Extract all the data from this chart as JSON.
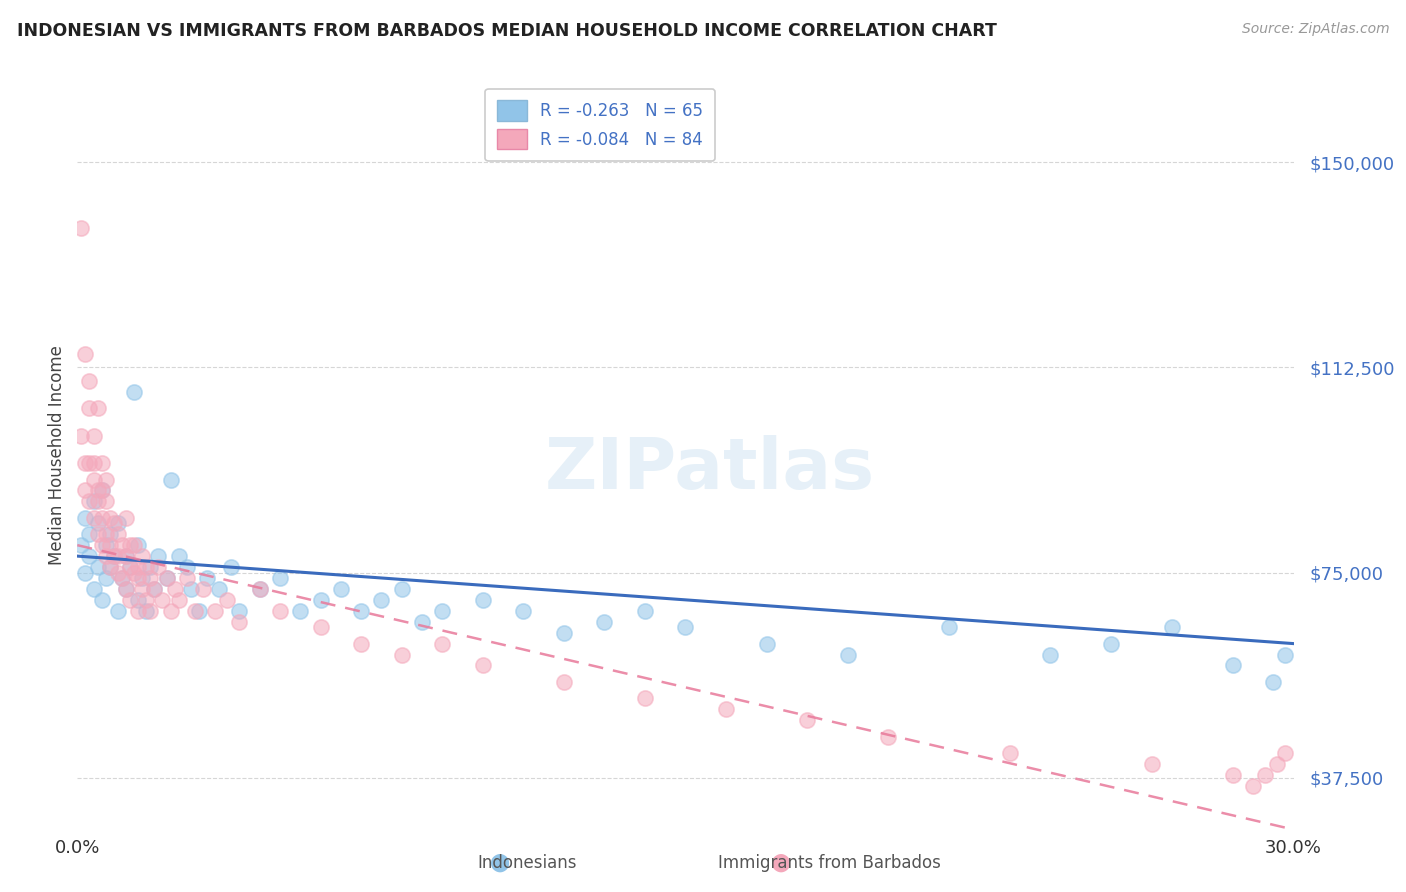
{
  "title": "INDONESIAN VS IMMIGRANTS FROM BARBADOS MEDIAN HOUSEHOLD INCOME CORRELATION CHART",
  "source": "Source: ZipAtlas.com",
  "ylabel": "Median Household Income",
  "legend_indonesians": "Indonesians",
  "legend_barbados": "Immigrants from Barbados",
  "R_indonesians": -0.263,
  "N_indonesians": 65,
  "R_barbados": -0.084,
  "N_barbados": 84,
  "color_indonesians": "#91c4e8",
  "color_barbados": "#f4a8bb",
  "line_color_indonesians": "#3a6bbd",
  "line_color_barbados": "#e8799a",
  "background_color": "#ffffff",
  "yticks": [
    37500,
    75000,
    112500,
    150000
  ],
  "ytick_labels": [
    "$37,500",
    "$75,000",
    "$112,500",
    "$150,000"
  ],
  "xlim": [
    0.0,
    0.3
  ],
  "ylim": [
    28000,
    165000
  ],
  "indonesians_x": [
    0.001,
    0.002,
    0.002,
    0.003,
    0.003,
    0.004,
    0.004,
    0.005,
    0.005,
    0.006,
    0.006,
    0.007,
    0.007,
    0.008,
    0.008,
    0.009,
    0.01,
    0.01,
    0.011,
    0.012,
    0.012,
    0.013,
    0.014,
    0.015,
    0.015,
    0.016,
    0.017,
    0.018,
    0.019,
    0.02,
    0.022,
    0.023,
    0.025,
    0.027,
    0.028,
    0.03,
    0.032,
    0.035,
    0.038,
    0.04,
    0.045,
    0.05,
    0.055,
    0.06,
    0.065,
    0.07,
    0.075,
    0.08,
    0.085,
    0.09,
    0.1,
    0.11,
    0.12,
    0.13,
    0.14,
    0.15,
    0.17,
    0.19,
    0.215,
    0.24,
    0.255,
    0.27,
    0.285,
    0.295,
    0.298
  ],
  "indonesians_y": [
    80000,
    75000,
    85000,
    78000,
    82000,
    72000,
    88000,
    76000,
    84000,
    70000,
    90000,
    74000,
    80000,
    76000,
    82000,
    78000,
    68000,
    84000,
    74000,
    78000,
    72000,
    76000,
    108000,
    80000,
    70000,
    74000,
    68000,
    76000,
    72000,
    78000,
    74000,
    92000,
    78000,
    76000,
    72000,
    68000,
    74000,
    72000,
    76000,
    68000,
    72000,
    74000,
    68000,
    70000,
    72000,
    68000,
    70000,
    72000,
    66000,
    68000,
    70000,
    68000,
    64000,
    66000,
    68000,
    65000,
    62000,
    60000,
    65000,
    60000,
    62000,
    65000,
    58000,
    55000,
    60000
  ],
  "barbados_x": [
    0.001,
    0.001,
    0.002,
    0.002,
    0.002,
    0.003,
    0.003,
    0.003,
    0.003,
    0.004,
    0.004,
    0.004,
    0.004,
    0.005,
    0.005,
    0.005,
    0.005,
    0.006,
    0.006,
    0.006,
    0.006,
    0.007,
    0.007,
    0.007,
    0.007,
    0.008,
    0.008,
    0.008,
    0.009,
    0.009,
    0.01,
    0.01,
    0.01,
    0.011,
    0.011,
    0.012,
    0.012,
    0.012,
    0.013,
    0.013,
    0.013,
    0.014,
    0.014,
    0.015,
    0.015,
    0.015,
    0.016,
    0.016,
    0.017,
    0.017,
    0.018,
    0.018,
    0.019,
    0.02,
    0.021,
    0.022,
    0.023,
    0.024,
    0.025,
    0.027,
    0.029,
    0.031,
    0.034,
    0.037,
    0.04,
    0.045,
    0.05,
    0.06,
    0.07,
    0.08,
    0.09,
    0.1,
    0.12,
    0.14,
    0.16,
    0.18,
    0.2,
    0.23,
    0.265,
    0.285,
    0.29,
    0.293,
    0.296,
    0.298
  ],
  "barbados_y": [
    138000,
    100000,
    115000,
    95000,
    90000,
    105000,
    110000,
    95000,
    88000,
    100000,
    92000,
    85000,
    95000,
    90000,
    105000,
    82000,
    88000,
    95000,
    80000,
    90000,
    85000,
    88000,
    78000,
    92000,
    82000,
    76000,
    85000,
    80000,
    78000,
    84000,
    75000,
    82000,
    78000,
    80000,
    74000,
    78000,
    85000,
    72000,
    80000,
    76000,
    70000,
    75000,
    80000,
    76000,
    68000,
    74000,
    72000,
    78000,
    70000,
    76000,
    74000,
    68000,
    72000,
    76000,
    70000,
    74000,
    68000,
    72000,
    70000,
    74000,
    68000,
    72000,
    68000,
    70000,
    66000,
    72000,
    68000,
    65000,
    62000,
    60000,
    62000,
    58000,
    55000,
    52000,
    50000,
    48000,
    45000,
    42000,
    40000,
    38000,
    36000,
    38000,
    40000,
    42000
  ]
}
